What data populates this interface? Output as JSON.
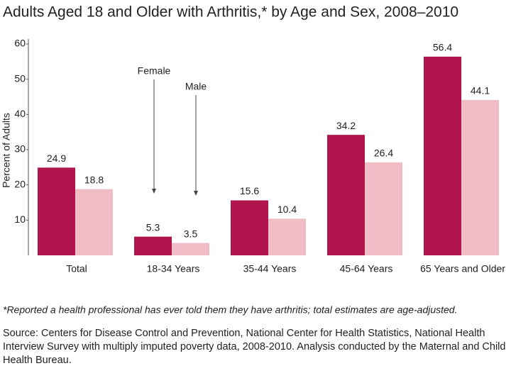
{
  "chart_data": {
    "type": "bar",
    "title": "Adults Aged 18 and Older with Arthritis,* by Age and Sex, 2008–2010",
    "y_axis_label": "Percent of Adults",
    "categories": [
      "Total",
      "18-34 Years",
      "35-44 Years",
      "45-64 Years",
      "65 Years and Older"
    ],
    "series": [
      {
        "name": "Female",
        "color": "#b0154e",
        "values": [
          24.9,
          5.3,
          15.6,
          34.2,
          56.4
        ]
      },
      {
        "name": "Male",
        "color": "#f0bcc6",
        "values": [
          18.8,
          3.5,
          10.4,
          26.4,
          44.1
        ]
      }
    ],
    "ylim": [
      0,
      60
    ],
    "yticks": [
      10,
      20,
      30,
      40,
      50,
      60
    ],
    "footnote": "*Reported a health professional has ever told them they have arthritis; total estimates are age-adjusted.",
    "source": [
      "Source: Centers for Disease Control and Prevention, National Center for Health Statistics, National Health",
      "Interview Survey with multiply imputed poverty data, 2008-2010. Analysis conducted by the Maternal and Child",
      "Health Bureau."
    ]
  }
}
